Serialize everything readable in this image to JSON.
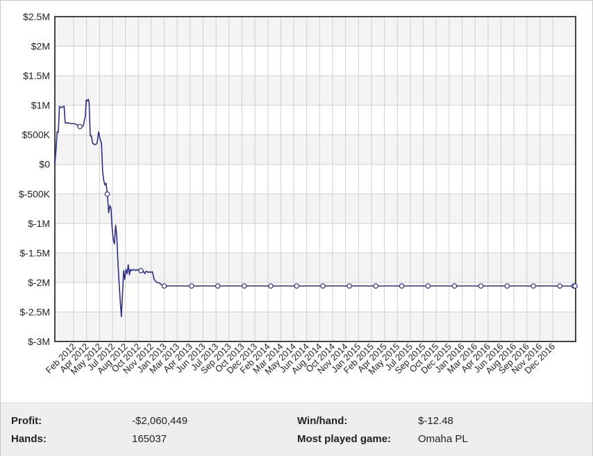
{
  "chart_data": {
    "type": "line",
    "title": "",
    "xlabel": "",
    "ylabel": "",
    "x_tick_labels": [
      "Feb 2012",
      "Apr 2012",
      "May 2012",
      "Jul 2012",
      "Aug 2012",
      "Oct 2012",
      "Nov 2012",
      "Jan 2013",
      "Mar 2013",
      "Apr 2013",
      "Jun 2013",
      "Jul 2013",
      "Sep 2013",
      "Oct 2013",
      "Dec 2013",
      "Feb 2014",
      "Mar 2014",
      "May 2014",
      "Jun 2014",
      "Aug 2014",
      "Oct 2014",
      "Nov 2014",
      "Jan 2015",
      "Feb 2015",
      "Apr 2015",
      "May 2015",
      "Jul 2015",
      "Sep 2015",
      "Oct 2015",
      "Dec 2015",
      "Jan 2016",
      "Mar 2016",
      "Apr 2016",
      "Jun 2016",
      "Aug 2016",
      "Sep 2016",
      "Nov 2016",
      "Dec 2016"
    ],
    "y_tick_labels": [
      "$2.5M",
      "$2M",
      "$1.5M",
      "$1M",
      "$500K",
      "$0",
      "$-500K",
      "$-1M",
      "$-1.5M",
      "$-2M",
      "$-2.5M",
      "$-3M"
    ],
    "y_tick_values": [
      2500000,
      2000000,
      1500000,
      1000000,
      500000,
      0,
      -500000,
      -1000000,
      -1500000,
      -2000000,
      -2500000,
      -3000000
    ],
    "ylim": [
      -3000000,
      2500000
    ],
    "grid": true,
    "line_color": "#2b2e8c",
    "series": [
      {
        "x": [
          "2012-01-01",
          "2012-01-05",
          "2012-01-09",
          "2012-01-13",
          "2012-01-17",
          "2012-01-21",
          "2012-01-25",
          "2012-01-29",
          "2012-02-02",
          "2012-02-06",
          "2012-02-11",
          "2012-02-18",
          "2012-02-25",
          "2012-03-05",
          "2012-03-14",
          "2012-03-20",
          "2012-03-28",
          "2012-04-03",
          "2012-04-09",
          "2012-04-13",
          "2012-04-16",
          "2012-04-19",
          "2012-04-22",
          "2012-04-26",
          "2012-04-29",
          "2012-05-03",
          "2012-05-07",
          "2012-05-11",
          "2012-05-16",
          "2012-05-19",
          "2012-05-23",
          "2012-05-27",
          "2012-06-01",
          "2012-06-06",
          "2012-06-11",
          "2012-06-15",
          "2012-06-19",
          "2012-06-23",
          "2012-06-27",
          "2012-07-02",
          "2012-07-06",
          "2012-07-10",
          "2012-07-14",
          "2012-07-18",
          "2012-07-22",
          "2012-07-26",
          "2012-07-30",
          "2012-08-03",
          "2012-08-07",
          "2012-08-11",
          "2012-08-15",
          "2012-08-19",
          "2012-08-23",
          "2012-08-27",
          "2012-08-31",
          "2012-09-04",
          "2012-09-08",
          "2012-09-12",
          "2012-09-16",
          "2012-09-20",
          "2012-09-24",
          "2012-09-28",
          "2012-10-02",
          "2012-10-08",
          "2012-10-14",
          "2012-10-20",
          "2012-10-26",
          "2012-11-01",
          "2012-11-05",
          "2012-11-09",
          "2012-11-13",
          "2012-11-17",
          "2012-11-21",
          "2012-11-25",
          "2012-11-29",
          "2012-12-05",
          "2012-12-11",
          "2012-12-20",
          "2012-12-30",
          "2013-01-10",
          "2013-01-20",
          "2013-02-01",
          "2013-02-10",
          "2013-02-20",
          "2013-03-04",
          "2013-03-16",
          "2013-04-01",
          "2013-06-01",
          "2013-09-01",
          "2013-12-01",
          "2014-03-01",
          "2014-06-01",
          "2014-09-01",
          "2014-12-01",
          "2015-03-01",
          "2015-06-01",
          "2015-09-01",
          "2015-12-01",
          "2016-03-01",
          "2016-06-01",
          "2016-09-01",
          "2016-12-01",
          "2016-12-12"
        ],
        "y": [
          0,
          250000,
          550000,
          540000,
          980000,
          970000,
          960000,
          975000,
          985000,
          700000,
          700000,
          700000,
          690000,
          690000,
          680000,
          660000,
          640000,
          640000,
          650000,
          760000,
          800000,
          1090000,
          1070000,
          1100000,
          1050000,
          480000,
          480000,
          360000,
          340000,
          330000,
          340000,
          360000,
          550000,
          430000,
          360000,
          -120000,
          -280000,
          -350000,
          -320000,
          -550000,
          -820000,
          -700000,
          -740000,
          -1080000,
          -1280000,
          -1350000,
          -1030000,
          -1200000,
          -1650000,
          -2000000,
          -2300000,
          -2580000,
          -2200000,
          -1800000,
          -1950000,
          -1780000,
          -1850000,
          -1700000,
          -1870000,
          -1780000,
          -1800000,
          -1790000,
          -1780000,
          -1800000,
          -1780000,
          -1800000,
          -1800000,
          -1790000,
          -1830000,
          -1850000,
          -1810000,
          -1820000,
          -1830000,
          -1820000,
          -1830000,
          -1820000,
          -1950000,
          -2000000,
          -2010000,
          -2060000,
          -2060000,
          -2060000,
          -2060000,
          -2060000,
          -2060000,
          -2060000,
          -2060000,
          -2060000,
          -2060000,
          -2060000,
          -2060000,
          -2060000,
          -2060000,
          -2060000,
          -2060000,
          -2060000,
          -2060000,
          -2060000,
          -2060000,
          -2060000,
          -2060000,
          -2060000,
          -2060449
        ]
      }
    ],
    "marker_x": [
      "2012-03-28",
      "2012-07-01",
      "2012-10-26",
      "2013-01-15",
      "2013-04-20",
      "2013-07-20",
      "2013-10-20",
      "2014-01-20",
      "2014-04-20",
      "2014-07-20",
      "2014-10-20",
      "2015-01-20",
      "2015-04-20",
      "2015-07-20",
      "2015-10-20",
      "2016-01-20",
      "2016-04-20",
      "2016-07-20",
      "2016-10-20",
      "2016-12-08",
      "2016-12-12"
    ]
  },
  "stats": {
    "profit_label": "Profit:",
    "profit_value": "-$2,060,449",
    "hands_label": "Hands:",
    "hands_value": "165037",
    "winhand_label": "Win/hand:",
    "winhand_value": "$-12.48",
    "game_label": "Most played game:",
    "game_value": "Omaha PL"
  }
}
